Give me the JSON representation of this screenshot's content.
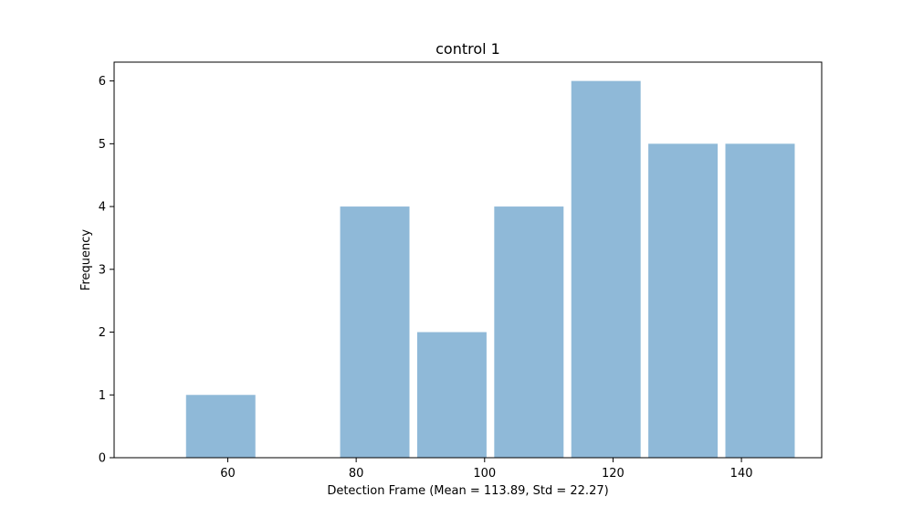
{
  "chart_data": {
    "type": "bar",
    "title": "control 1",
    "xlabel": "Detection Frame (Mean = 113.89, Std = 22.27)",
    "ylabel": "Frequency",
    "bins": [
      {
        "x_start": 53.5,
        "x_end": 64.3,
        "value": 1
      },
      {
        "x_start": 65.5,
        "x_end": 76.3,
        "value": 0
      },
      {
        "x_start": 77.5,
        "x_end": 88.3,
        "value": 4
      },
      {
        "x_start": 89.5,
        "x_end": 100.3,
        "value": 2
      },
      {
        "x_start": 101.5,
        "x_end": 112.3,
        "value": 4
      },
      {
        "x_start": 113.5,
        "x_end": 124.3,
        "value": 6
      },
      {
        "x_start": 125.5,
        "x_end": 136.3,
        "value": 5
      },
      {
        "x_start": 137.5,
        "x_end": 148.3,
        "value": 5
      }
    ],
    "xlim": [
      42.3,
      152.5
    ],
    "ylim": [
      0,
      6.3
    ],
    "xticks": [
      60,
      80,
      100,
      120,
      140
    ],
    "yticks": [
      0,
      1,
      2,
      3,
      4,
      5,
      6
    ],
    "bar_color": "#8fb9d8",
    "grid": false,
    "legend": "none"
  }
}
